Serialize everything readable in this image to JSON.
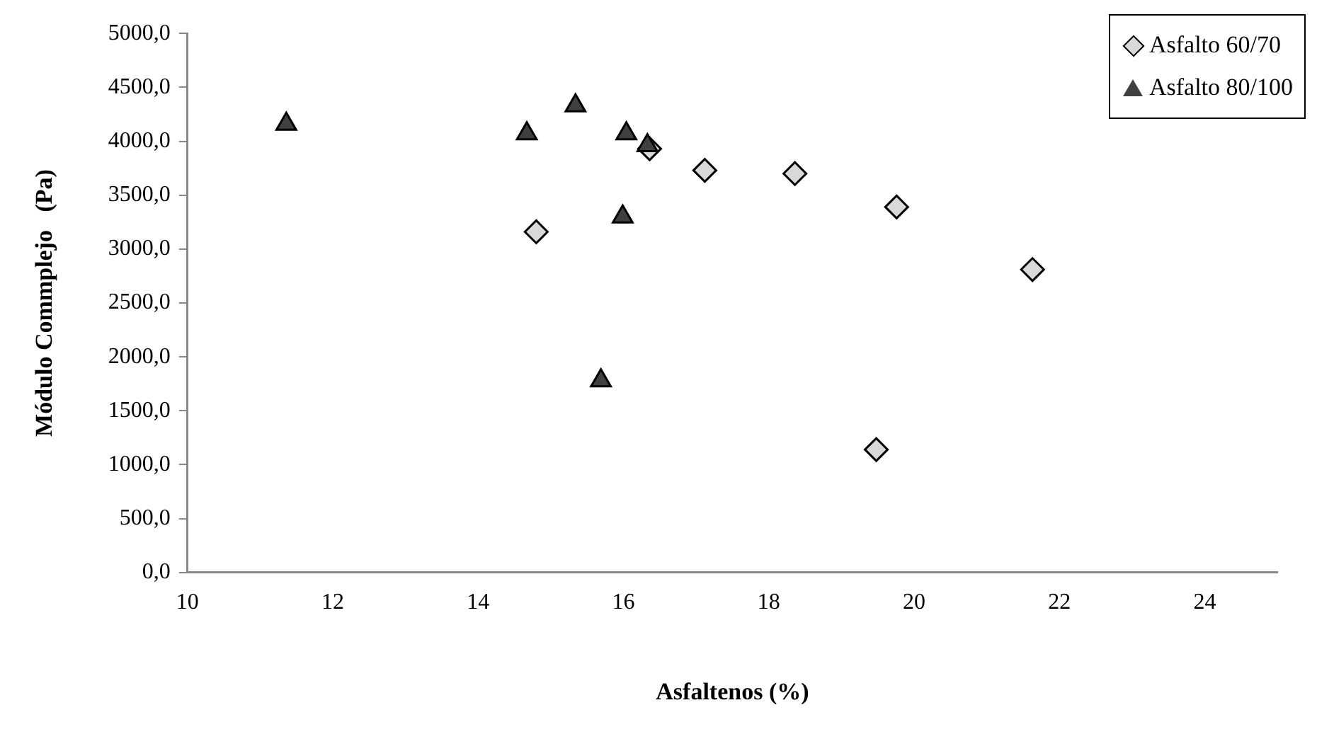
{
  "chart_data": {
    "type": "scatter",
    "xlabel": "Asfaltenos (%)",
    "ylabel": "Módulo Commplejo   (Pa)",
    "xlim": [
      10,
      25
    ],
    "xticks": [
      10,
      12,
      14,
      16,
      18,
      20,
      22,
      24
    ],
    "ylim": [
      0,
      5000
    ],
    "yticks": [
      {
        "value": 0,
        "label": "0,0"
      },
      {
        "value": 500,
        "label": "500,0"
      },
      {
        "value": 1000,
        "label": "1000,0"
      },
      {
        "value": 1500,
        "label": "1500,0"
      },
      {
        "value": 2000,
        "label": "2000,0"
      },
      {
        "value": 2500,
        "label": "2500,0"
      },
      {
        "value": 3000,
        "label": "3000,0"
      },
      {
        "value": 3500,
        "label": "3500,0"
      },
      {
        "value": 4000,
        "label": "4000,0"
      },
      {
        "value": 4500,
        "label": "4500,0"
      },
      {
        "value": 5000,
        "label": "5000,0"
      }
    ],
    "grid": false,
    "legend": "top right",
    "series": [
      {
        "name": "Asfalto 60/70",
        "color": "#d9d9d9",
        "marker": "diamond",
        "x": [
          14.8,
          16.36,
          17.12,
          18.36,
          19.76,
          21.63,
          19.48
        ],
        "values": [
          3160,
          3930,
          3730,
          3700,
          3390,
          2810,
          1140
        ]
      },
      {
        "name": "Asfalto 80/100",
        "color": "#404040",
        "marker": "triangle",
        "x": [
          11.36,
          14.67,
          15.34,
          16.04,
          16.33,
          15.99,
          15.69
        ],
        "values": [
          4160,
          4070,
          4330,
          4070,
          3960,
          3300,
          1780
        ]
      }
    ]
  }
}
